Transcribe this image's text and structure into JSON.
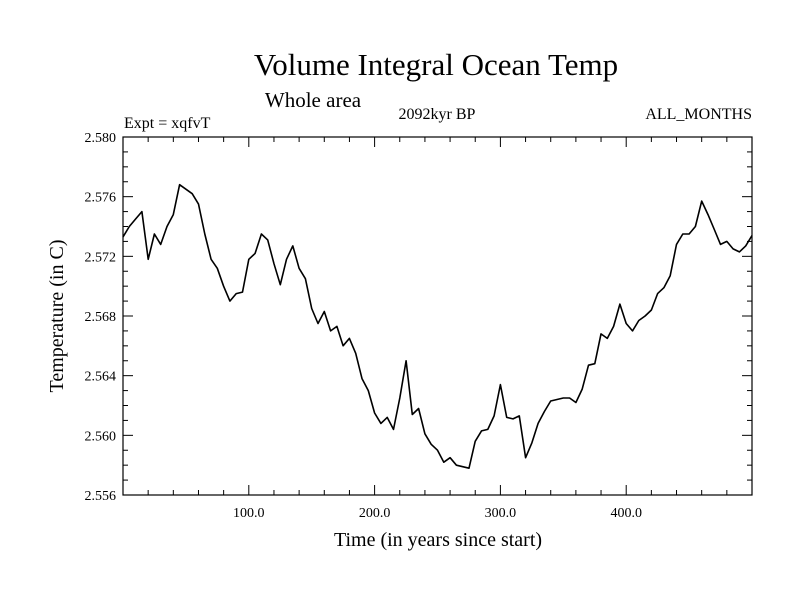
{
  "chart_data": {
    "type": "line",
    "title": "Volume Integral Ocean Temp",
    "subtitle": "Whole area",
    "left_label": "Expt = xqfvT",
    "center_label": "2092kyr BP",
    "right_label": "ALL_MONTHS",
    "xlabel": "Time (in years since start)",
    "ylabel": "Temperature (in C)",
    "xlim": [
      0,
      500
    ],
    "ylim": [
      2.556,
      2.58
    ],
    "x_ticks": [
      100,
      200,
      300,
      400
    ],
    "x_tick_labels": [
      "100.0",
      "200.0",
      "300.0",
      "400.0"
    ],
    "y_ticks": [
      2.556,
      2.56,
      2.564,
      2.568,
      2.572,
      2.576,
      2.58
    ],
    "y_tick_labels": [
      "2.556",
      "2.560",
      "2.564",
      "2.568",
      "2.572",
      "2.576",
      "2.580"
    ],
    "grid": false,
    "series": [
      {
        "name": "Volume integral ocean temperature",
        "x": [
          0,
          5,
          10,
          15,
          20,
          25,
          30,
          35,
          40,
          45,
          50,
          55,
          60,
          65,
          70,
          75,
          80,
          85,
          90,
          95,
          100,
          105,
          110,
          115,
          120,
          125,
          130,
          135,
          140,
          145,
          150,
          155,
          160,
          165,
          170,
          175,
          180,
          185,
          190,
          195,
          200,
          205,
          210,
          215,
          220,
          225,
          230,
          235,
          240,
          245,
          250,
          255,
          260,
          265,
          270,
          275,
          280,
          285,
          290,
          295,
          300,
          305,
          310,
          315,
          320,
          325,
          330,
          335,
          340,
          345,
          350,
          355,
          360,
          365,
          370,
          375,
          380,
          385,
          390,
          395,
          400,
          405,
          410,
          415,
          420,
          425,
          430,
          435,
          440,
          445,
          450,
          455,
          460,
          465,
          470,
          475,
          480,
          485,
          490,
          495,
          500
        ],
        "values": [
          2.5733,
          2.574,
          2.5745,
          2.575,
          2.5718,
          2.5735,
          2.5728,
          2.574,
          2.5748,
          2.5768,
          2.5765,
          2.5762,
          2.5755,
          2.5735,
          2.5718,
          2.5712,
          2.57,
          2.569,
          2.5695,
          2.5696,
          2.5718,
          2.5722,
          2.5735,
          2.5731,
          2.5715,
          2.5701,
          2.5718,
          2.5727,
          2.5712,
          2.5705,
          2.5685,
          2.5675,
          2.5683,
          2.567,
          2.5673,
          2.566,
          2.5665,
          2.5655,
          2.5638,
          2.563,
          2.5615,
          2.5608,
          2.5612,
          2.5604,
          2.5625,
          2.565,
          2.5614,
          2.5618,
          2.5601,
          2.5594,
          2.559,
          2.5582,
          2.5585,
          2.558,
          2.5579,
          2.5578,
          2.5596,
          2.5603,
          2.5604,
          2.5613,
          2.5634,
          2.5612,
          2.5611,
          2.5613,
          2.5585,
          2.5595,
          2.5608,
          2.5616,
          2.5623,
          2.5624,
          2.5625,
          2.5625,
          2.5622,
          2.5631,
          2.5647,
          2.5648,
          2.5668,
          2.5665,
          2.5673,
          2.5688,
          2.5675,
          2.567,
          2.5677,
          2.568,
          2.5684,
          2.5695,
          2.5699,
          2.5707,
          2.5728,
          2.5735,
          2.5735,
          2.574,
          2.5757,
          2.5748,
          2.5738,
          2.5728,
          2.573,
          2.5725,
          2.5723,
          2.5727,
          2.5734
        ]
      }
    ]
  }
}
